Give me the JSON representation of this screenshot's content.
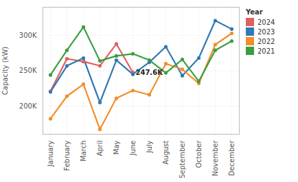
{
  "chart_data": {
    "type": "line",
    "y_label": "Capacity (kW)",
    "legend_title": "Year",
    "legend": "right",
    "grid": true,
    "marker": "circle",
    "categories": [
      "January",
      "February",
      "March",
      "April",
      "May",
      "June",
      "July",
      "August",
      "September",
      "October",
      "November",
      "December"
    ],
    "ylim": [
      160000,
      340000
    ],
    "yticks": [
      {
        "value": 200000,
        "label": "200K"
      },
      {
        "value": 250000,
        "label": "250K"
      },
      {
        "value": 300000,
        "label": "300K"
      }
    ],
    "series": [
      {
        "name": "2024",
        "color": "#e0605e",
        "values": [
          221000,
          267000,
          263000,
          257000,
          288000,
          247600,
          null,
          null,
          null,
          null,
          null,
          null
        ]
      },
      {
        "name": "2023",
        "color": "#2f79b5",
        "values": [
          220000,
          257000,
          268000,
          205000,
          265000,
          245000,
          262000,
          284000,
          243000,
          268000,
          321000,
          309000
        ]
      },
      {
        "name": "2022",
        "color": "#f28e2b",
        "values": [
          182000,
          214000,
          231000,
          167000,
          211000,
          222000,
          216000,
          260000,
          252000,
          232000,
          287000,
          303000
        ]
      },
      {
        "name": "2021",
        "color": "#3c9e3e",
        "values": [
          244000,
          279000,
          312000,
          264000,
          271000,
          274000,
          265000,
          247000,
          266000,
          235000,
          279000,
          292000
        ]
      }
    ],
    "annotations": [
      {
        "text": "247.6K",
        "x": "June",
        "y": 247600
      }
    ]
  }
}
